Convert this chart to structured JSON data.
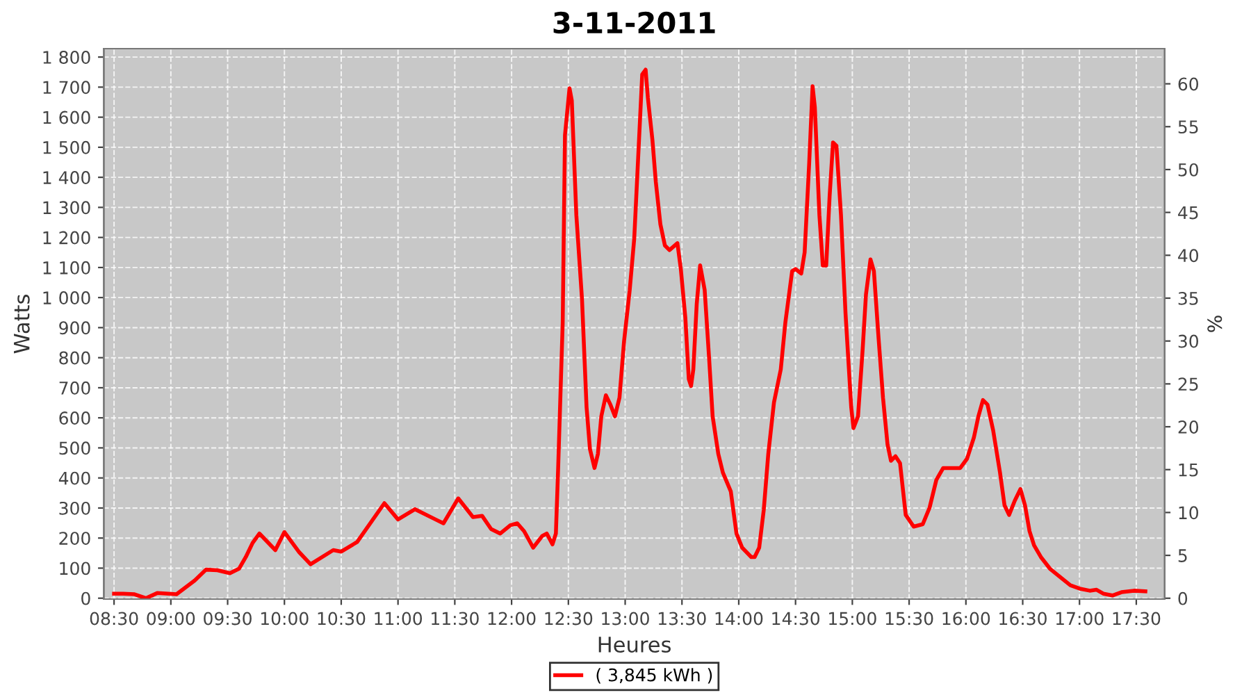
{
  "chart_data": {
    "type": "line",
    "title": "3-11-2011",
    "xlabel": "Heures",
    "ylabel": "Watts",
    "y2label": "%",
    "xlim": [
      8.41,
      17.75
    ],
    "xticks": [
      {
        "value": 8.5,
        "label": "08:30"
      },
      {
        "value": 9,
        "label": "09:00"
      },
      {
        "value": 9.5,
        "label": "09:30"
      },
      {
        "value": 10,
        "label": "10:00"
      },
      {
        "value": 10.5,
        "label": "10:30"
      },
      {
        "value": 11,
        "label": "11:00"
      },
      {
        "value": 11.5,
        "label": "11:30"
      },
      {
        "value": 12,
        "label": "12:00"
      },
      {
        "value": 12.5,
        "label": "12:30"
      },
      {
        "value": 13,
        "label": "13:00"
      },
      {
        "value": 13.5,
        "label": "13:30"
      },
      {
        "value": 14,
        "label": "14:00"
      },
      {
        "value": 14.5,
        "label": "14:30"
      },
      {
        "value": 15,
        "label": "15:00"
      },
      {
        "value": 15.5,
        "label": "15:30"
      },
      {
        "value": 16,
        "label": "16:00"
      },
      {
        "value": 16.5,
        "label": "16:30"
      },
      {
        "value": 17,
        "label": "17:00"
      },
      {
        "value": 17.5,
        "label": "17:30"
      }
    ],
    "ylim": [
      -3,
      1828
    ],
    "yticks": [
      0,
      100,
      200,
      300,
      400,
      500,
      600,
      700,
      800,
      900,
      {
        "value": 1000,
        "label": "1 000"
      },
      {
        "value": 1100,
        "label": "1 100"
      },
      {
        "value": 1200,
        "label": "1 200"
      },
      {
        "value": 1300,
        "label": "1 300"
      },
      {
        "value": 1400,
        "label": "1 400"
      },
      {
        "value": 1500,
        "label": "1 500"
      },
      {
        "value": 1600,
        "label": "1 600"
      },
      {
        "value": 1700,
        "label": "1 700"
      },
      {
        "value": 1800,
        "label": "1 800"
      }
    ],
    "y2lim": [
      -0.1,
      64.1
    ],
    "y2ticks": [
      0,
      5,
      10,
      15,
      20,
      25,
      30,
      35,
      40,
      45,
      50,
      55,
      60
    ],
    "grid": true,
    "legend": "bottom",
    "marker": "none",
    "line_style": "solid",
    "series": [
      {
        "name": "( 3,845 kWh )",
        "color": "#ff0000",
        "x": [
          8.5,
          8.58,
          8.68,
          8.78,
          8.88,
          9.05,
          9.21,
          9.31,
          9.41,
          9.52,
          9.6,
          9.66,
          9.72,
          9.78,
          9.92,
          10.0,
          10.13,
          10.23,
          10.43,
          10.5,
          10.64,
          10.88,
          11.0,
          11.15,
          11.33,
          11.4,
          11.53,
          11.66,
          11.74,
          11.82,
          11.9,
          11.99,
          12.05,
          12.11,
          12.19,
          12.27,
          12.31,
          12.36,
          12.39,
          12.41,
          12.45,
          12.47,
          12.51,
          12.53,
          12.57,
          12.62,
          12.66,
          12.69,
          12.73,
          12.76,
          12.79,
          12.83,
          12.87,
          12.91,
          12.95,
          12.99,
          13.04,
          13.08,
          13.12,
          13.15,
          13.18,
          13.2,
          13.24,
          13.27,
          13.31,
          13.35,
          13.39,
          13.46,
          13.49,
          13.53,
          13.56,
          13.58,
          13.6,
          13.63,
          13.66,
          13.7,
          13.74,
          13.77,
          13.82,
          13.86,
          13.93,
          13.98,
          14.03,
          14.11,
          14.14,
          14.18,
          14.22,
          14.26,
          14.31,
          14.37,
          14.41,
          14.47,
          14.5,
          14.55,
          14.58,
          14.62,
          14.65,
          14.67,
          14.71,
          14.74,
          14.77,
          14.8,
          14.83,
          14.86,
          14.9,
          14.94,
          14.99,
          15.01,
          15.05,
          15.09,
          15.12,
          15.16,
          15.19,
          15.23,
          15.27,
          15.31,
          15.34,
          15.38,
          15.42,
          15.47,
          15.54,
          15.62,
          15.68,
          15.74,
          15.8,
          15.95,
          16.01,
          16.07,
          16.11,
          16.15,
          16.19,
          16.24,
          16.3,
          16.34,
          16.38,
          16.43,
          16.48,
          16.52,
          16.56,
          16.6,
          16.66,
          16.74,
          16.84,
          16.92,
          17.01,
          17.09,
          17.15,
          17.21,
          17.29,
          17.37,
          17.48,
          17.58
        ],
        "values": [
          15,
          15,
          13,
          0,
          17,
          13,
          59,
          95,
          93,
          83,
          98,
          137,
          184,
          215,
          160,
          220,
          153,
          113,
          160,
          155,
          187,
          316,
          262,
          296,
          262,
          249,
          332,
          270,
          274,
          230,
          215,
          243,
          249,
          223,
          168,
          207,
          215,
          179,
          215,
          433,
          916,
          1540,
          1696,
          1656,
          1275,
          994,
          636,
          496,
          433,
          480,
          605,
          675,
          644,
          605,
          667,
          854,
          1025,
          1197,
          1509,
          1742,
          1758,
          1664,
          1524,
          1384,
          1244,
          1173,
          1158,
          1181,
          1095,
          932,
          729,
          706,
          761,
          979,
          1107,
          1025,
          792,
          605,
          480,
          418,
          355,
          215,
          168,
          137,
          137,
          168,
          293,
          480,
          651,
          761,
          916,
          1088,
          1095,
          1080,
          1150,
          1446,
          1703,
          1633,
          1275,
          1107,
          1107,
          1337,
          1516,
          1505,
          1275,
          948,
          636,
          566,
          605,
          823,
          1010,
          1127,
          1088,
          870,
          667,
          511,
          457,
          472,
          449,
          277,
          238,
          246,
          301,
          394,
          433,
          433,
          464,
          534,
          605,
          659,
          644,
          558,
          418,
          309,
          277,
          324,
          363,
          309,
          223,
          176,
          137,
          98,
          67,
          43,
          31,
          25,
          28,
          15,
          9,
          20,
          25,
          23
        ]
      }
    ]
  }
}
